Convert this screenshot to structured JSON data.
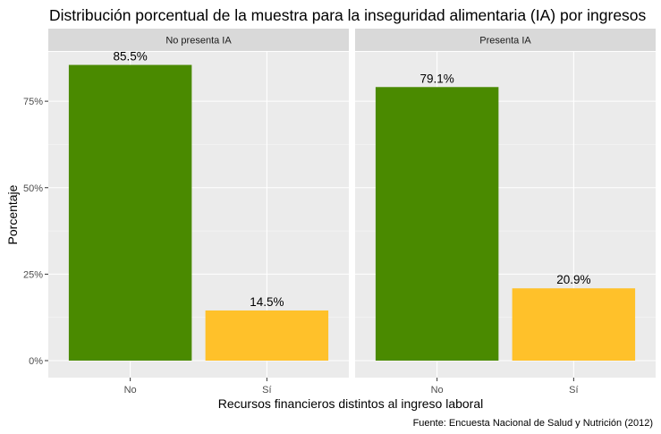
{
  "chart_data": {
    "type": "bar",
    "title": "Distribución porcentual de la muestra para la inseguridad alimentaria (IA) por ingresos",
    "xlabel": "Recursos financieros distintos al ingreso laboral",
    "ylabel": "Porcentaje",
    "caption": "Fuente: Encuesta Nacional de Salud y Nutrición (2012)",
    "categories": [
      "No",
      "Sí"
    ],
    "colors": [
      "#4a8a00",
      "#ffc12a"
    ],
    "ylim": [
      0,
      1
    ],
    "y_ticks": [
      {
        "value": 0,
        "label": "0%"
      },
      {
        "value": 0.25,
        "label": "25%"
      },
      {
        "value": 0.5,
        "label": "50%"
      },
      {
        "value": 0.75,
        "label": "75%"
      }
    ],
    "grid": true,
    "legend": "none",
    "panels": [
      {
        "name": "No presenta IA",
        "values": [
          0.855,
          0.145
        ],
        "labels": [
          "85.5%",
          "14.5%"
        ]
      },
      {
        "name": "Presenta IA",
        "values": [
          0.791,
          0.209
        ],
        "labels": [
          "79.1%",
          "20.9%"
        ]
      }
    ]
  }
}
